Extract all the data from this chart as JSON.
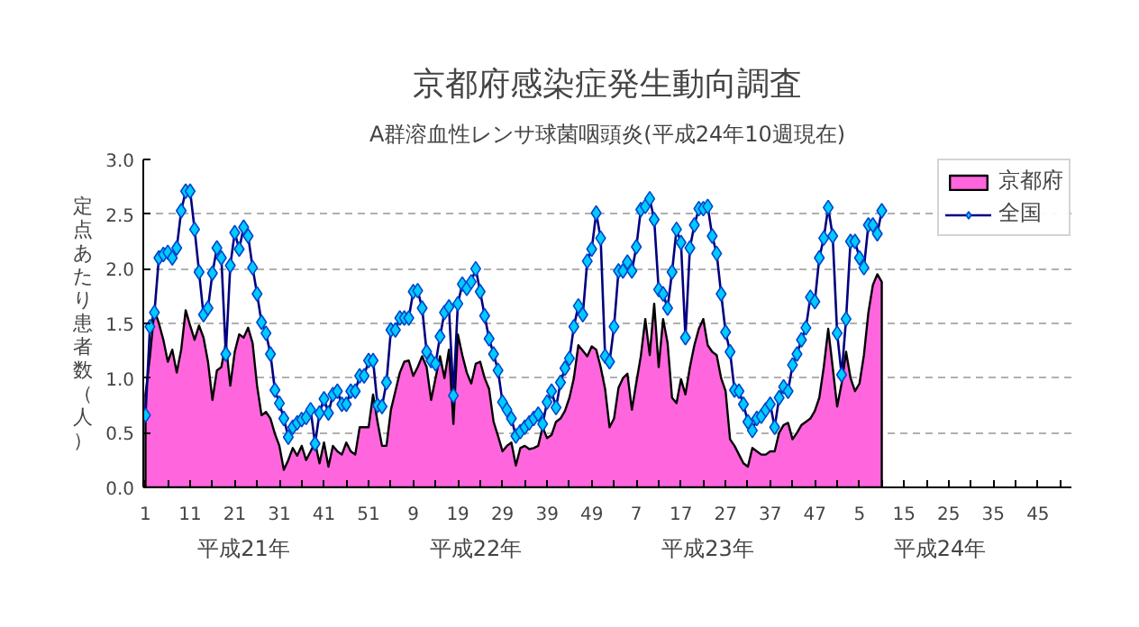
{
  "chart_data": {
    "type": "area",
    "title": "京都府感染症発生動向調査",
    "subtitle": "A群溶血性レンサ球菌咽頭炎(平成24年10週現在)",
    "ylabel": "定点あたり患者数（人）",
    "annotations": [
      "平成21年",
      "平成22年",
      "平成23年",
      "平成24年"
    ],
    "categories": [
      "1",
      null,
      null,
      null,
      null,
      null,
      null,
      null,
      null,
      null,
      "11",
      null,
      null,
      null,
      null,
      null,
      null,
      null,
      null,
      null,
      "21",
      null,
      null,
      null,
      null,
      null,
      null,
      null,
      null,
      null,
      "31",
      null,
      null,
      null,
      null,
      null,
      null,
      null,
      null,
      null,
      "41",
      null,
      null,
      null,
      null,
      null,
      null,
      null,
      null,
      null,
      "51",
      null,
      null,
      null,
      null,
      null,
      null,
      null,
      null,
      null,
      "9",
      null,
      null,
      null,
      null,
      null,
      null,
      null,
      null,
      null,
      "19",
      null,
      null,
      null,
      null,
      null,
      null,
      null,
      null,
      null,
      "29",
      null,
      null,
      null,
      null,
      null,
      null,
      null,
      null,
      null,
      "39",
      null,
      null,
      null,
      null,
      null,
      null,
      null,
      null,
      null,
      "49",
      null,
      null,
      null,
      null,
      null,
      null,
      null,
      null,
      null,
      "7",
      null,
      null,
      null,
      null,
      null,
      null,
      null,
      null,
      null,
      "17",
      null,
      null,
      null,
      null,
      null,
      null,
      null,
      null,
      null,
      "27",
      null,
      null,
      null,
      null,
      null,
      null,
      null,
      null,
      null,
      "37",
      null,
      null,
      null,
      null,
      null,
      null,
      null,
      null,
      null,
      "47",
      null,
      null,
      null,
      null,
      null,
      null,
      null,
      null,
      null,
      "5",
      null,
      null,
      null,
      null,
      null,
      null,
      null,
      null,
      null,
      "15",
      null,
      null,
      null,
      null,
      null,
      null,
      null,
      null,
      null,
      "25",
      null,
      null,
      null,
      null,
      null,
      null,
      null,
      null,
      null,
      "35",
      null,
      null,
      null,
      null,
      null,
      null,
      null,
      null,
      null,
      "45",
      null,
      null,
      null,
      null,
      null,
      null,
      null
    ],
    "series": [
      {
        "name": "京都府",
        "color": "#ff66dd",
        "values": [
          0.85,
          1.2,
          1.62,
          1.5,
          1.35,
          1.15,
          1.26,
          1.05,
          1.26,
          1.62,
          1.48,
          1.35,
          1.48,
          1.37,
          1.15,
          0.8,
          1.07,
          1.1,
          1.32,
          0.93,
          1.24,
          1.4,
          1.37,
          1.46,
          1.32,
          0.93,
          0.66,
          0.69,
          0.63,
          0.49,
          0.38,
          0.16,
          0.25,
          0.36,
          0.29,
          0.38,
          0.25,
          0.33,
          0.41,
          0.22,
          0.41,
          0.19,
          0.38,
          0.33,
          0.3,
          0.41,
          0.33,
          0.3,
          0.55,
          0.55,
          0.55,
          0.85,
          0.6,
          0.38,
          0.38,
          0.71,
          0.88,
          1.05,
          1.15,
          1.16,
          1.02,
          1.1,
          1.2,
          1.1,
          0.8,
          1.0,
          1.2,
          1.0,
          1.26,
          0.58,
          1.4,
          1.21,
          1.05,
          0.95,
          1.13,
          1.15,
          1.0,
          0.9,
          0.6,
          0.47,
          0.33,
          0.38,
          0.41,
          0.2,
          0.36,
          0.38,
          0.35,
          0.36,
          0.38,
          0.55,
          0.45,
          0.48,
          0.6,
          0.63,
          0.7,
          0.82,
          1.0,
          1.3,
          1.25,
          1.2,
          1.29,
          1.26,
          1.1,
          0.9,
          0.55,
          0.63,
          0.91,
          1.0,
          1.04,
          0.71,
          0.96,
          1.2,
          1.54,
          1.21,
          1.68,
          1.1,
          1.54,
          1.32,
          0.82,
          0.77,
          0.99,
          0.85,
          1.1,
          1.3,
          1.45,
          1.54,
          1.3,
          1.24,
          1.21,
          1.0,
          0.88,
          0.44,
          0.38,
          0.3,
          0.22,
          0.19,
          0.36,
          0.33,
          0.3,
          0.3,
          0.33,
          0.33,
          0.5,
          0.57,
          0.59,
          0.44,
          0.5,
          0.57,
          0.6,
          0.63,
          0.7,
          0.82,
          1.1,
          1.45,
          1.1,
          0.74,
          0.95,
          1.24,
          1.0,
          0.88,
          0.95,
          1.21,
          1.6,
          1.85,
          1.95,
          1.88,
          null,
          null,
          null,
          null,
          null,
          null,
          null,
          null,
          null,
          null,
          null,
          null,
          null,
          null,
          null,
          null,
          null,
          null,
          null,
          null,
          null,
          null,
          null,
          null,
          null,
          null,
          null,
          null,
          null,
          null,
          null,
          null,
          null,
          null,
          null,
          null,
          null,
          null,
          null,
          null,
          null,
          null
        ]
      },
      {
        "name": "全国",
        "type": "line",
        "color": "#000080",
        "marker": "diamond",
        "values": [
          0.66,
          1.47,
          1.6,
          2.1,
          2.13,
          2.15,
          2.1,
          2.19,
          2.53,
          2.71,
          2.71,
          2.36,
          1.97,
          1.58,
          1.64,
          1.96,
          2.19,
          2.1,
          1.22,
          2.03,
          2.33,
          2.18,
          2.38,
          2.3,
          2.01,
          1.77,
          1.51,
          1.41,
          1.22,
          0.89,
          0.77,
          0.63,
          0.46,
          0.55,
          0.59,
          0.62,
          0.64,
          0.71,
          0.4,
          0.68,
          0.81,
          0.68,
          0.85,
          0.88,
          0.76,
          0.76,
          0.88,
          0.88,
          1.02,
          1.02,
          1.16,
          1.16,
          0.75,
          0.74,
          0.96,
          1.44,
          1.44,
          1.55,
          1.55,
          1.55,
          1.79,
          1.8,
          1.64,
          1.24,
          1.16,
          1.13,
          1.38,
          1.6,
          1.65,
          0.84,
          1.68,
          1.86,
          1.82,
          1.88,
          2.0,
          1.79,
          1.57,
          1.36,
          1.22,
          1.07,
          0.78,
          0.71,
          0.63,
          0.47,
          0.51,
          0.55,
          0.59,
          0.63,
          0.67,
          0.58,
          0.78,
          0.88,
          0.73,
          0.96,
          1.09,
          1.18,
          1.47,
          1.66,
          1.58,
          2.07,
          2.18,
          2.51,
          2.28,
          1.2,
          1.15,
          1.47,
          1.98,
          1.98,
          2.06,
          1.98,
          2.2,
          2.54,
          2.57,
          2.64,
          2.45,
          1.81,
          1.77,
          1.64,
          1.97,
          2.36,
          2.24,
          1.37,
          2.19,
          2.4,
          2.55,
          2.55,
          2.57,
          2.3,
          2.14,
          1.77,
          1.42,
          1.24,
          0.89,
          0.88,
          0.76,
          0.6,
          0.52,
          0.63,
          0.65,
          0.71,
          0.76,
          0.55,
          0.82,
          0.92,
          0.88,
          1.12,
          1.22,
          1.35,
          1.46,
          1.74,
          1.7,
          2.1,
          2.28,
          2.56,
          2.3,
          1.41,
          1.03,
          1.54,
          2.25,
          2.25,
          2.1,
          2.01,
          2.4,
          2.4,
          2.32,
          2.53,
          null,
          null,
          null,
          null,
          null,
          null,
          null,
          null,
          null,
          null,
          null,
          null,
          null,
          null,
          null,
          null,
          null,
          null,
          null,
          null,
          null,
          null,
          null,
          null,
          null,
          null,
          null,
          null,
          null,
          null,
          null,
          null,
          null,
          null,
          null,
          null,
          null,
          null,
          null,
          null,
          null,
          null
        ]
      }
    ],
    "ylim": [
      0,
      3
    ],
    "yticks": [
      {
        "value": 0,
        "label": "0.0"
      },
      {
        "value": 0.5,
        "label": "0.5"
      },
      {
        "value": 1,
        "label": "1.0"
      },
      {
        "value": 1.5,
        "label": "1.5"
      },
      {
        "value": 2,
        "label": "2.0"
      },
      {
        "value": 2.5,
        "label": "2.5"
      },
      {
        "value": 3,
        "label": "3.0"
      }
    ],
    "grid": "y",
    "legend": "top right"
  }
}
